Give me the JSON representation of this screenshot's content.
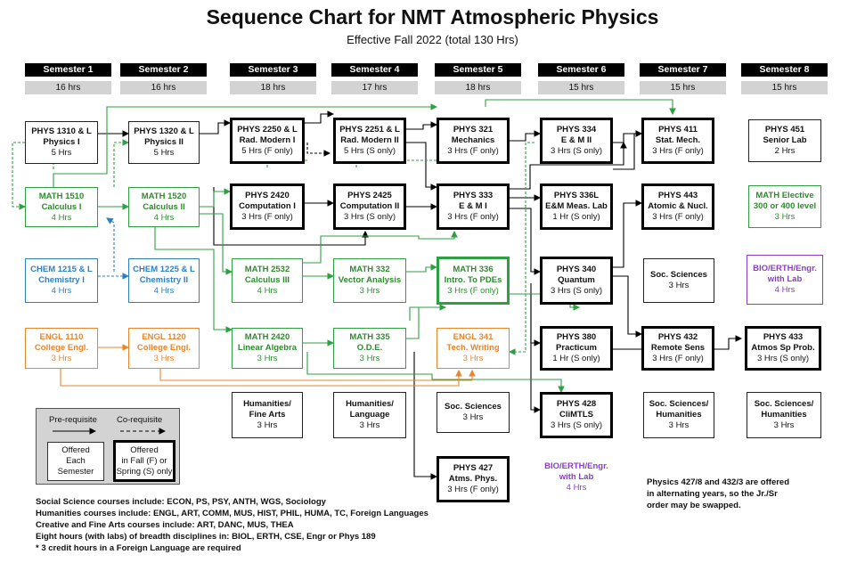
{
  "header": {
    "title": "Sequence Chart for NMT Atmospheric Physics",
    "subtitle": "Effective Fall 2022 (total 130 Hrs)"
  },
  "semesters": [
    {
      "label": "Semester 1",
      "hours": "16 hrs"
    },
    {
      "label": "Semester 2",
      "hours": "16 hrs"
    },
    {
      "label": "Semester 3",
      "hours": "18 hrs"
    },
    {
      "label": "Semester 4",
      "hours": "17 hrs"
    },
    {
      "label": "Semester 5",
      "hours": "18 hrs"
    },
    {
      "label": "Semester 6",
      "hours": "15 hrs"
    },
    {
      "label": "Semester 7",
      "hours": "15 hrs"
    },
    {
      "label": "Semester 8",
      "hours": "15 hrs"
    }
  ],
  "courses": {
    "phys1310": {
      "name": "PHYS 1310 & L",
      "sub": "Physics I",
      "hrs": "5 Hrs"
    },
    "phys1320": {
      "name": "PHYS 1320 & L",
      "sub": "Physics II",
      "hrs": "5 Hrs"
    },
    "phys2250": {
      "name": "PHYS 2250 & L",
      "sub": "Rad. Modern I",
      "hrs": "5 Hrs (F only)"
    },
    "phys2251": {
      "name": "PHYS 2251 & L",
      "sub": "Rad. Modern II",
      "hrs": "5 Hrs (S only)"
    },
    "phys321": {
      "name": "PHYS 321",
      "sub": "Mechanics",
      "hrs": "3 Hrs (F only)"
    },
    "phys334": {
      "name": "PHYS 334",
      "sub": "E & M II",
      "hrs": "3 Hrs (S only)"
    },
    "phys411": {
      "name": "PHYS 411",
      "sub": "Stat. Mech.",
      "hrs": "3 Hrs (F only)"
    },
    "phys451": {
      "name": "PHYS 451",
      "sub": "Senior Lab",
      "hrs": "2 Hrs"
    },
    "math1510": {
      "name": "MATH 1510",
      "sub": "Calculus I",
      "hrs": "4 Hrs"
    },
    "math1520": {
      "name": "MATH 1520",
      "sub": "Calculus II",
      "hrs": "4 Hrs"
    },
    "phys2420": {
      "name": "PHYS 2420",
      "sub": "Computation I",
      "hrs": "3 Hrs (F only)"
    },
    "phys2425": {
      "name": "PHYS 2425",
      "sub": "Computation II",
      "hrs": "3 Hrs (S only)"
    },
    "phys333": {
      "name": "PHYS 333",
      "sub": "E & M I",
      "hrs": "3 Hrs (F only)"
    },
    "phys336l": {
      "name": "PHYS 336L",
      "sub": "E&M Meas. Lab",
      "hrs": "1 Hr (S only)"
    },
    "phys443": {
      "name": "PHYS 443",
      "sub": "Atomic & Nucl.",
      "hrs": "3 Hrs (F only)"
    },
    "mathelective": {
      "name": "MATH Elective",
      "sub": "300 or 400 level",
      "hrs": "3 Hrs"
    },
    "chem1215": {
      "name": "CHEM 1215 & L",
      "sub": "Chemistry I",
      "hrs": "4 Hrs"
    },
    "chem1225": {
      "name": "CHEM 1225 & L",
      "sub": "Chemistry II",
      "hrs": "4 Hrs"
    },
    "math2532": {
      "name": "MATH 2532",
      "sub": "Calculus III",
      "hrs": "4 Hrs"
    },
    "math332": {
      "name": "MATH 332",
      "sub": "Vector Analysis",
      "hrs": "3 Hrs"
    },
    "math336": {
      "name": "MATH 336",
      "sub": "Intro. To PDEs",
      "hrs": "3 Hrs (F only)"
    },
    "phys340": {
      "name": "PHYS 340",
      "sub": "Quantum",
      "hrs": "3 Hrs (S only)"
    },
    "socsci7": {
      "name": "Soc. Sciences",
      "sub": "",
      "hrs": "3 Hrs"
    },
    "bio8": {
      "name": "BIO/ERTH/Engr.",
      "sub": "with Lab",
      "hrs": "4 Hrs"
    },
    "engl1110": {
      "name": "ENGL 1110",
      "sub": "College Engl.",
      "hrs": "3 Hrs"
    },
    "engl1120": {
      "name": "ENGL 1120",
      "sub": "College Engl.",
      "hrs": "3 Hrs"
    },
    "math2420": {
      "name": "MATH 2420",
      "sub": "Linear Algebra",
      "hrs": "3 Hrs"
    },
    "math335": {
      "name": "MATH 335",
      "sub": "O.D.E.",
      "hrs": "3 Hrs"
    },
    "engl341": {
      "name": "ENGL 341",
      "sub": "Tech. Writing",
      "hrs": "3 Hrs"
    },
    "phys380": {
      "name": "PHYS 380",
      "sub": "Practicum",
      "hrs": "1 Hr (S only)"
    },
    "phys432": {
      "name": "PHYS 432",
      "sub": "Remote Sens",
      "hrs": "3 Hrs (F only)"
    },
    "phys433": {
      "name": "PHYS 433",
      "sub": "Atmos Sp Prob.",
      "hrs": "3 Hrs (S only)"
    },
    "hum3": {
      "name": "Humanities/",
      "sub": "Fine Arts",
      "hrs": "3 Hrs"
    },
    "hum4": {
      "name": "Humanities/",
      "sub": "Language",
      "hrs": "3 Hrs"
    },
    "socsci5": {
      "name": "Soc. Sciences",
      "sub": "",
      "hrs": "3 Hrs"
    },
    "phys428": {
      "name": "PHYS 428",
      "sub": "CliMTLS",
      "hrs": "3 Hrs (S only)"
    },
    "sochum7": {
      "name": "Soc. Sciences/",
      "sub": "Humanities",
      "hrs": "3 Hrs"
    },
    "sochum8": {
      "name": "Soc. Sciences/",
      "sub": "Humanities",
      "hrs": "3 Hrs"
    },
    "phys427": {
      "name": "PHYS 427",
      "sub": "Atms. Phys.",
      "hrs": "3 Hrs (F only)"
    },
    "bio6": {
      "name": "BIO/ERTH/Engr.",
      "sub": "with Lab",
      "hrs": "4 Hrs"
    }
  },
  "legend": {
    "prereq": "Pre-requisite",
    "coreq": "Co-requisite",
    "offered_each_1": "Offered",
    "offered_each_2": "Each",
    "offered_each_3": "Semester",
    "offered_fs_1": "Offered",
    "offered_fs_2": "in Fall (F) or",
    "offered_fs_3": "Spring (S) only"
  },
  "notes": [
    "Social Science courses include: ECON, PS, PSY, ANTH, WGS, Sociology",
    "Humanities courses include: ENGL, ART, COMM, MUS, HIST, PHIL, HUMA, TC, Foreign Languages",
    "Creative and Fine Arts courses include: ART, DANC, MUS, THEA",
    "Eight hours (with labs) of breadth disciplines in: BIOL, ERTH, CSE, Engr or Phys 189",
    "* 3 credit hours in a Foreign Language are required"
  ],
  "alternating_note": [
    "Physics 427/8 and 432/3 are offered",
    "in alternating years, so the Jr./Sr",
    "order may be swapped."
  ],
  "colors": {
    "black": "#000000",
    "green": "#2ea043",
    "blue": "#2f7fc4",
    "orange": "#e8862e",
    "purple": "#8a3fc0",
    "gray": "#d3d3d3"
  }
}
